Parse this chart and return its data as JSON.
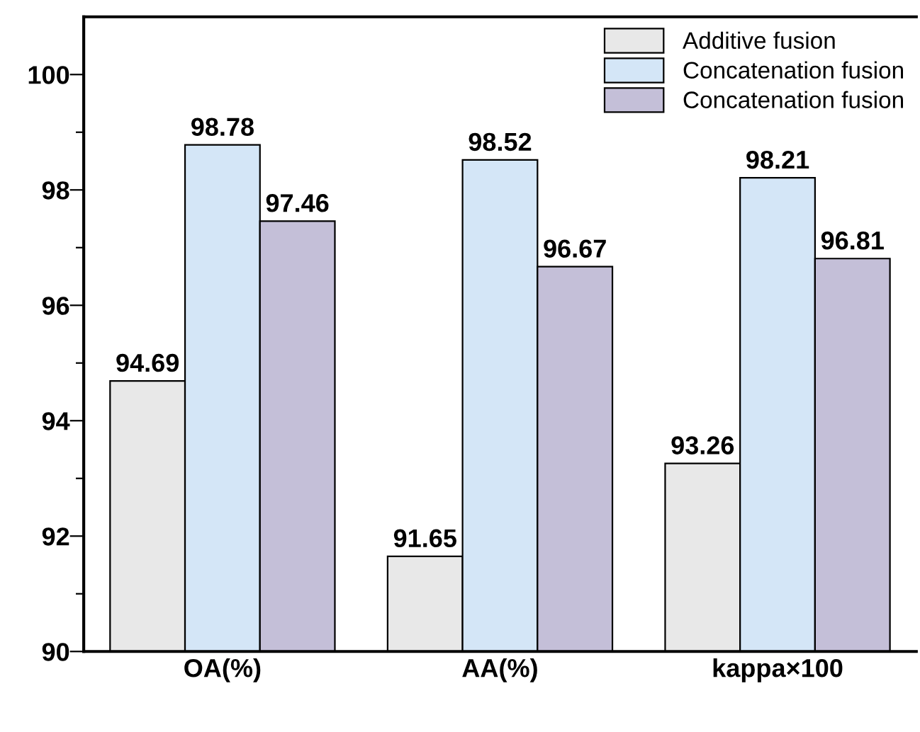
{
  "chart_data": {
    "type": "bar",
    "categories": [
      "OA(%)",
      "AA(%)",
      "kappa×100"
    ],
    "series": [
      {
        "name": "Additive fusion",
        "color": "#e8e8e8",
        "values": [
          94.69,
          91.65,
          93.26
        ]
      },
      {
        "name": "Concatenation fusion",
        "color": "#d4e6f7",
        "values": [
          98.78,
          98.52,
          98.21
        ]
      },
      {
        "name": "Concatenation fusion",
        "color": "#c4bfd8",
        "values": [
          97.46,
          96.67,
          96.81
        ]
      }
    ],
    "ylim": [
      90,
      101
    ],
    "yticks": [
      90,
      {
        "value": 91,
        "label": null
      },
      92,
      {
        "value": 93,
        "label": null
      },
      94,
      {
        "value": 95,
        "label": null
      },
      96,
      {
        "value": 97,
        "label": null
      },
      98,
      {
        "value": 99,
        "label": null
      },
      100
    ],
    "data_labels": true,
    "legend": "top right",
    "grid": false
  }
}
